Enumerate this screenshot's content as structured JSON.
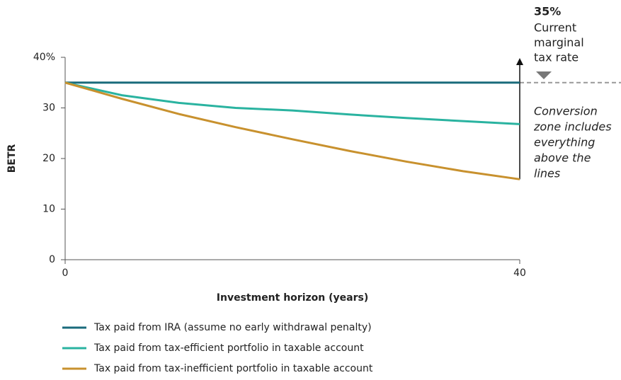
{
  "chart_data": {
    "type": "line",
    "y_label": "BETR",
    "x_label": "Investment horizon (years)",
    "x": [
      0,
      5,
      10,
      15,
      20,
      25,
      30,
      35,
      40
    ],
    "series": [
      {
        "name": "Tax paid from IRA (assume no early withdrawal penalty)",
        "color": "#1a6b7c",
        "values": [
          35,
          35,
          35,
          35,
          35,
          35,
          35,
          35,
          35
        ]
      },
      {
        "name": "Tax paid from tax-efficient portfolio in taxable account",
        "color": "#2ab3a0",
        "values": [
          35,
          32.5,
          31,
          30,
          29.5,
          28.7,
          28,
          27.4,
          26.8
        ]
      },
      {
        "name": "Tax paid from tax-inefficient portfolio in taxable account",
        "color": "#c8912e",
        "values": [
          35,
          31.8,
          28.8,
          26.2,
          23.8,
          21.5,
          19.4,
          17.5,
          15.9
        ]
      }
    ],
    "xlim": [
      0,
      40
    ],
    "xticks": [
      0,
      40
    ],
    "ylim": [
      0,
      40
    ],
    "yticks": [
      0,
      10,
      20,
      30,
      {
        "value": 40,
        "label": "40%"
      }
    ],
    "marginal_rate": {
      "value": 35,
      "label": "35%",
      "lines": [
        "Current",
        "marginal",
        "tax rate"
      ]
    },
    "zone_note": [
      "Conversion",
      "zone includes",
      "everything",
      "above the",
      "lines"
    ]
  }
}
